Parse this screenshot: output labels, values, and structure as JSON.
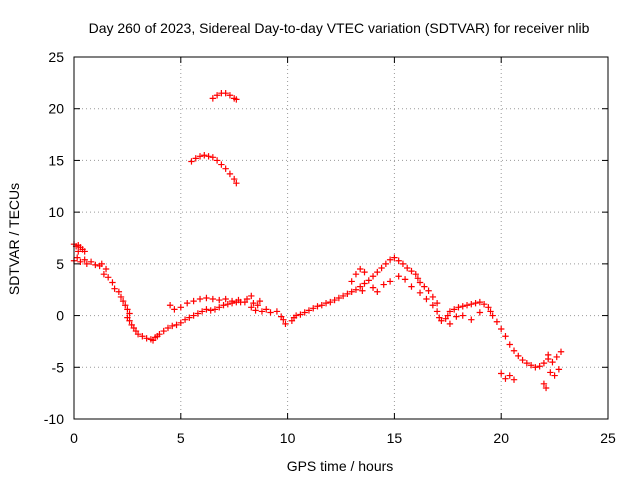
{
  "colors": {
    "series": "#ff0000",
    "grid": "#9a9a9a",
    "axis": "#000000"
  },
  "chart_data": {
    "type": "scatter",
    "title": "Day 260 of 2023, Sidereal Day-to-day VTEC variation (SDTVAR) for receiver nlib",
    "xlabel": "GPS time / hours",
    "ylabel": "SDTVAR / TECUs",
    "xlim": [
      0,
      25
    ],
    "ylim": [
      -10,
      25
    ],
    "xticks": [
      0,
      5,
      10,
      15,
      20,
      25
    ],
    "yticks": [
      -10,
      -5,
      0,
      5,
      10,
      15,
      20,
      25
    ],
    "xtick_labels": [
      "0",
      "5",
      "10",
      "15",
      "20",
      "25"
    ],
    "ytick_labels": [
      "-10",
      "-5",
      "0",
      "5",
      "10",
      "15",
      "20",
      "25"
    ],
    "grid": true,
    "marker": "plus",
    "series": [
      {
        "name": "nlib",
        "color": "#ff0000",
        "points": [
          [
            0.0,
            6.9
          ],
          [
            0.1,
            6.7
          ],
          [
            0.2,
            6.8
          ],
          [
            0.3,
            6.6
          ],
          [
            0.4,
            6.4
          ],
          [
            0.5,
            6.2
          ],
          [
            0.0,
            5.3
          ],
          [
            0.15,
            5.6
          ],
          [
            0.3,
            5.2
          ],
          [
            0.5,
            5.4
          ],
          [
            0.6,
            5.0
          ],
          [
            0.8,
            5.2
          ],
          [
            1.0,
            4.9
          ],
          [
            1.2,
            4.8
          ],
          [
            1.3,
            5.0
          ],
          [
            1.5,
            4.5
          ],
          [
            1.4,
            4.0
          ],
          [
            1.6,
            3.7
          ],
          [
            1.8,
            3.2
          ],
          [
            1.9,
            2.6
          ],
          [
            2.1,
            2.3
          ],
          [
            2.2,
            1.8
          ],
          [
            2.3,
            1.4
          ],
          [
            2.4,
            1.0
          ],
          [
            2.5,
            0.6
          ],
          [
            2.6,
            0.2
          ],
          [
            2.5,
            -0.2
          ],
          [
            2.6,
            -0.5
          ],
          [
            2.7,
            -0.9
          ],
          [
            2.8,
            -1.2
          ],
          [
            2.9,
            -1.5
          ],
          [
            3.0,
            -1.8
          ],
          [
            3.2,
            -2.0
          ],
          [
            3.4,
            -2.2
          ],
          [
            3.6,
            -2.3
          ],
          [
            3.7,
            -2.4
          ],
          [
            3.8,
            -2.1
          ],
          [
            3.9,
            -2.0
          ],
          [
            4.0,
            -1.8
          ],
          [
            4.2,
            -1.5
          ],
          [
            4.4,
            -1.2
          ],
          [
            4.6,
            -1.0
          ],
          [
            4.8,
            -0.9
          ],
          [
            5.0,
            -0.7
          ],
          [
            5.2,
            -0.4
          ],
          [
            5.4,
            -0.2
          ],
          [
            5.6,
            0.0
          ],
          [
            5.8,
            0.2
          ],
          [
            6.0,
            0.4
          ],
          [
            6.2,
            0.6
          ],
          [
            6.4,
            0.5
          ],
          [
            6.6,
            0.6
          ],
          [
            6.8,
            0.8
          ],
          [
            7.0,
            1.0
          ],
          [
            7.2,
            1.1
          ],
          [
            7.4,
            1.2
          ],
          [
            7.6,
            1.3
          ],
          [
            7.8,
            1.3
          ],
          [
            4.5,
            1.0
          ],
          [
            4.7,
            0.6
          ],
          [
            5.0,
            0.8
          ],
          [
            5.3,
            1.2
          ],
          [
            5.6,
            1.4
          ],
          [
            5.9,
            1.6
          ],
          [
            6.2,
            1.7
          ],
          [
            6.5,
            1.6
          ],
          [
            6.8,
            1.5
          ],
          [
            7.1,
            1.6
          ],
          [
            7.4,
            1.4
          ],
          [
            7.7,
            1.5
          ],
          [
            8.0,
            1.3
          ],
          [
            8.1,
            1.6
          ],
          [
            8.3,
            1.9
          ],
          [
            8.4,
            1.2
          ],
          [
            8.6,
            1.0
          ],
          [
            8.7,
            1.4
          ],
          [
            8.3,
            0.8
          ],
          [
            8.5,
            0.5
          ],
          [
            8.8,
            0.4
          ],
          [
            9.0,
            0.6
          ],
          [
            9.2,
            0.3
          ],
          [
            9.5,
            0.4
          ],
          [
            9.7,
            -0.1
          ],
          [
            9.8,
            -0.4
          ],
          [
            9.9,
            -0.8
          ],
          [
            10.2,
            -0.5
          ],
          [
            10.3,
            -0.2
          ],
          [
            10.4,
            0.0
          ],
          [
            10.6,
            0.1
          ],
          [
            10.8,
            0.3
          ],
          [
            11.0,
            0.5
          ],
          [
            11.2,
            0.7
          ],
          [
            11.4,
            0.9
          ],
          [
            11.6,
            1.0
          ],
          [
            11.8,
            1.2
          ],
          [
            12.0,
            1.3
          ],
          [
            12.2,
            1.5
          ],
          [
            12.4,
            1.7
          ],
          [
            12.6,
            1.9
          ],
          [
            12.8,
            2.1
          ],
          [
            13.0,
            2.3
          ],
          [
            13.2,
            2.5
          ],
          [
            13.4,
            2.8
          ],
          [
            13.6,
            3.1
          ],
          [
            13.8,
            3.4
          ],
          [
            14.0,
            3.8
          ],
          [
            14.2,
            4.2
          ],
          [
            14.4,
            4.6
          ],
          [
            14.6,
            5.0
          ],
          [
            14.8,
            5.4
          ],
          [
            15.0,
            5.6
          ],
          [
            15.2,
            5.3
          ],
          [
            15.4,
            5.0
          ],
          [
            15.6,
            4.6
          ],
          [
            15.8,
            4.3
          ],
          [
            16.0,
            4.0
          ],
          [
            16.1,
            3.6
          ],
          [
            16.2,
            3.2
          ],
          [
            16.4,
            2.8
          ],
          [
            16.6,
            2.4
          ],
          [
            16.8,
            1.8
          ],
          [
            17.0,
            1.2
          ],
          [
            13.0,
            3.3
          ],
          [
            13.2,
            4.0
          ],
          [
            13.4,
            4.5
          ],
          [
            13.6,
            4.2
          ],
          [
            14.5,
            3.0
          ],
          [
            14.8,
            3.3
          ],
          [
            15.2,
            3.8
          ],
          [
            15.5,
            3.5
          ],
          [
            15.8,
            2.8
          ],
          [
            16.2,
            2.2
          ],
          [
            13.5,
            2.4
          ],
          [
            14.0,
            2.7
          ],
          [
            14.2,
            2.3
          ],
          [
            16.5,
            1.6
          ],
          [
            16.8,
            1.0
          ],
          [
            17.0,
            0.4
          ],
          [
            17.1,
            -0.2
          ],
          [
            17.2,
            -0.5
          ],
          [
            17.4,
            -0.3
          ],
          [
            17.5,
            0.0
          ],
          [
            17.6,
            0.4
          ],
          [
            17.8,
            0.6
          ],
          [
            18.0,
            0.8
          ],
          [
            18.2,
            0.9
          ],
          [
            18.4,
            1.0
          ],
          [
            18.6,
            1.1
          ],
          [
            18.8,
            1.2
          ],
          [
            19.0,
            1.3
          ],
          [
            19.2,
            1.1
          ],
          [
            19.4,
            0.8
          ],
          [
            19.5,
            0.4
          ],
          [
            19.6,
            0.0
          ],
          [
            19.8,
            -0.6
          ],
          [
            20.0,
            -1.3
          ],
          [
            20.2,
            -2.0
          ],
          [
            20.4,
            -2.8
          ],
          [
            20.6,
            -3.4
          ],
          [
            20.8,
            -3.9
          ],
          [
            21.0,
            -4.3
          ],
          [
            21.2,
            -4.6
          ],
          [
            21.4,
            -4.8
          ],
          [
            21.6,
            -5.0
          ],
          [
            21.8,
            -4.9
          ],
          [
            22.0,
            -4.6
          ],
          [
            22.2,
            -4.2
          ],
          [
            22.4,
            -4.5
          ],
          [
            22.6,
            -4.0
          ],
          [
            22.8,
            -3.5
          ],
          [
            20.0,
            -5.6
          ],
          [
            20.2,
            -6.1
          ],
          [
            20.4,
            -5.8
          ],
          [
            20.6,
            -6.2
          ],
          [
            22.0,
            -6.6
          ],
          [
            22.1,
            -7.0
          ],
          [
            22.3,
            -5.5
          ],
          [
            22.5,
            -5.8
          ],
          [
            22.7,
            -5.2
          ],
          [
            22.2,
            -3.8
          ],
          [
            18.2,
            0.0
          ],
          [
            18.6,
            -0.4
          ],
          [
            19.0,
            0.3
          ],
          [
            17.6,
            -0.8
          ],
          [
            17.9,
            -0.1
          ],
          [
            0.2,
            6.2
          ],
          [
            5.7,
            15.2
          ],
          [
            5.9,
            15.4
          ],
          [
            6.1,
            15.5
          ],
          [
            6.3,
            15.4
          ],
          [
            6.5,
            15.3
          ],
          [
            6.7,
            15.0
          ],
          [
            6.9,
            14.6
          ],
          [
            7.1,
            14.2
          ],
          [
            7.3,
            13.7
          ],
          [
            7.5,
            13.2
          ],
          [
            7.6,
            12.8
          ],
          [
            5.5,
            14.9
          ],
          [
            6.5,
            21.0
          ],
          [
            6.7,
            21.3
          ],
          [
            6.9,
            21.5
          ],
          [
            7.1,
            21.5
          ],
          [
            7.3,
            21.3
          ],
          [
            7.5,
            21.0
          ],
          [
            7.6,
            20.9
          ]
        ]
      }
    ]
  }
}
